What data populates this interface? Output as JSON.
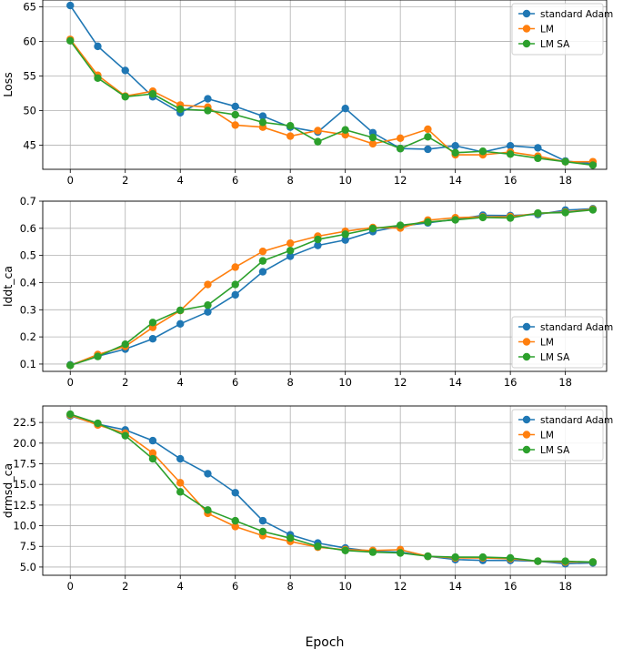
{
  "figure": {
    "xlabel": "Epoch"
  },
  "chart_data": [
    {
      "type": "line",
      "ylabel": "Loss",
      "x": [
        0,
        1,
        2,
        3,
        4,
        5,
        6,
        7,
        8,
        9,
        10,
        11,
        12,
        13,
        14,
        15,
        16,
        17,
        18,
        19
      ],
      "xlim": [
        -1,
        19.5
      ],
      "ylim": [
        41.5,
        66
      ],
      "xticks": [
        0,
        2,
        4,
        6,
        8,
        10,
        12,
        14,
        16,
        18
      ],
      "yticks": [
        45,
        50,
        55,
        60,
        65
      ],
      "legend": "top-right",
      "grid": true,
      "series": [
        {
          "name": "standard Adam",
          "color": "#1f77b4",
          "values": [
            65.2,
            59.3,
            55.8,
            52.0,
            49.7,
            51.7,
            50.6,
            49.2,
            47.6,
            46.9,
            50.3,
            46.8,
            44.5,
            44.4,
            44.9,
            44.0,
            44.9,
            44.6,
            42.7,
            42.3
          ]
        },
        {
          "name": "LM",
          "color": "#ff7f0e",
          "values": [
            60.3,
            55.1,
            52.1,
            52.8,
            50.8,
            50.5,
            47.9,
            47.6,
            46.3,
            47.1,
            46.5,
            45.2,
            46.0,
            47.3,
            43.6,
            43.6,
            44.0,
            43.4,
            42.6,
            42.6
          ]
        },
        {
          "name": "LM SA",
          "color": "#2ca02c",
          "values": [
            60.1,
            54.7,
            52.0,
            52.4,
            50.2,
            50.0,
            49.4,
            48.3,
            47.8,
            45.5,
            47.2,
            46.1,
            44.5,
            46.2,
            43.9,
            44.1,
            43.7,
            43.1,
            42.6,
            42.1
          ]
        }
      ]
    },
    {
      "type": "line",
      "ylabel": "lddt_ca",
      "x": [
        0,
        1,
        2,
        3,
        4,
        5,
        6,
        7,
        8,
        9,
        10,
        11,
        12,
        13,
        14,
        15,
        16,
        17,
        18,
        19
      ],
      "xlim": [
        -1,
        19.5
      ],
      "ylim": [
        0.073,
        0.7
      ],
      "xticks": [
        0,
        2,
        4,
        6,
        8,
        10,
        12,
        14,
        16,
        18
      ],
      "yticks": [
        0.1,
        0.2,
        0.3,
        0.4,
        0.5,
        0.6,
        0.7
      ],
      "yticklabels": [
        "0.1",
        "0.2",
        "0.3",
        "0.4",
        "0.5",
        "0.6",
        "0.7"
      ],
      "legend": "bottom-right",
      "grid": true,
      "series": [
        {
          "name": "standard Adam",
          "color": "#1f77b4",
          "values": [
            0.097,
            0.129,
            0.155,
            0.193,
            0.248,
            0.292,
            0.355,
            0.44,
            0.497,
            0.537,
            0.557,
            0.588,
            0.608,
            0.62,
            0.633,
            0.648,
            0.647,
            0.651,
            0.667,
            0.672
          ]
        },
        {
          "name": "LM",
          "color": "#ff7f0e",
          "values": [
            0.095,
            0.135,
            0.165,
            0.235,
            0.297,
            0.393,
            0.457,
            0.515,
            0.545,
            0.571,
            0.589,
            0.603,
            0.601,
            0.63,
            0.639,
            0.642,
            0.643,
            0.655,
            0.66,
            0.67
          ]
        },
        {
          "name": "LM SA",
          "color": "#2ca02c",
          "values": [
            0.095,
            0.128,
            0.173,
            0.253,
            0.298,
            0.317,
            0.393,
            0.48,
            0.518,
            0.559,
            0.578,
            0.599,
            0.611,
            0.623,
            0.631,
            0.64,
            0.638,
            0.656,
            0.658,
            0.668
          ]
        }
      ]
    },
    {
      "type": "line",
      "ylabel": "drmsd_ca",
      "x": [
        0,
        1,
        2,
        3,
        4,
        5,
        6,
        7,
        8,
        9,
        10,
        11,
        12,
        13,
        14,
        15,
        16,
        17,
        18,
        19
      ],
      "xlim": [
        -1,
        19.5
      ],
      "ylim": [
        4.0,
        24.5
      ],
      "xticks": [
        0,
        2,
        4,
        6,
        8,
        10,
        12,
        14,
        16,
        18
      ],
      "yticks": [
        5.0,
        7.5,
        10.0,
        12.5,
        15.0,
        17.5,
        20.0,
        22.5
      ],
      "yticklabels": [
        "5.0",
        "7.5",
        "10.0",
        "12.5",
        "15.0",
        "17.5",
        "20.0",
        "22.5"
      ],
      "legend": "top-right",
      "grid": true,
      "series": [
        {
          "name": "standard Adam",
          "color": "#1f77b4",
          "values": [
            23.3,
            22.3,
            21.6,
            20.3,
            18.1,
            16.3,
            14.0,
            10.6,
            8.9,
            7.9,
            7.3,
            6.9,
            6.8,
            6.3,
            5.9,
            5.8,
            5.8,
            5.7,
            5.4,
            5.5
          ]
        },
        {
          "name": "LM",
          "color": "#ff7f0e",
          "values": [
            23.4,
            22.2,
            21.2,
            18.8,
            15.2,
            11.5,
            9.9,
            8.8,
            8.1,
            7.4,
            7.1,
            7.0,
            7.1,
            6.3,
            6.1,
            6.1,
            6.0,
            5.7,
            5.6,
            5.6
          ]
        },
        {
          "name": "LM SA",
          "color": "#2ca02c",
          "values": [
            23.5,
            22.4,
            20.9,
            18.1,
            14.1,
            11.9,
            10.6,
            9.3,
            8.5,
            7.5,
            7.0,
            6.8,
            6.7,
            6.3,
            6.2,
            6.2,
            6.1,
            5.7,
            5.7,
            5.6
          ]
        }
      ]
    }
  ]
}
